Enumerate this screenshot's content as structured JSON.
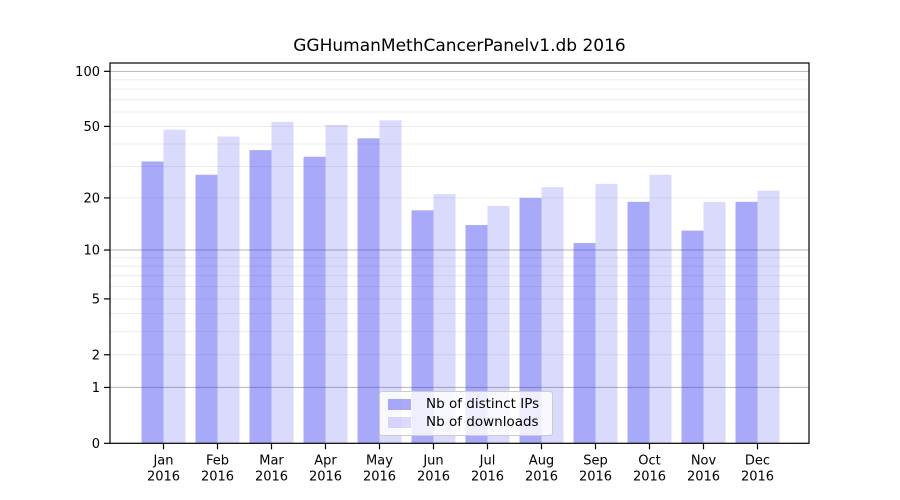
{
  "chart_data": {
    "type": "bar",
    "title": "GGHumanMethCancerPanelv1.db 2016",
    "categories": [
      "Jan",
      "Feb",
      "Mar",
      "Apr",
      "May",
      "Jun",
      "Jul",
      "Aug",
      "Sep",
      "Oct",
      "Nov",
      "Dec"
    ],
    "year_label": "2016",
    "series": [
      {
        "name": "Nb of distinct IPs",
        "color": "rgba(50,50,240,0.42)",
        "values": [
          32,
          27,
          37,
          34,
          43,
          17,
          14,
          20,
          11,
          19,
          13,
          19
        ]
      },
      {
        "name": "Nb of downloads",
        "color": "rgba(50,50,240,0.18)",
        "values": [
          48,
          44,
          53,
          51,
          54,
          21,
          18,
          23,
          24,
          27,
          19,
          22
        ]
      }
    ],
    "yscale": "log10(value+1)",
    "ylim": [
      0,
      111
    ],
    "yticks": [
      0,
      1,
      2,
      5,
      10,
      20,
      50,
      100
    ],
    "grid": {
      "minor_values": [
        2,
        3,
        4,
        5,
        6,
        7,
        8,
        9,
        20,
        30,
        40,
        50,
        60,
        70,
        80,
        90
      ],
      "major_values": [
        1,
        10,
        100
      ],
      "minor_color": "#ececec",
      "major_color": "#b4b4b4"
    },
    "legend_position": "lower center",
    "axis_color": "#000000"
  }
}
